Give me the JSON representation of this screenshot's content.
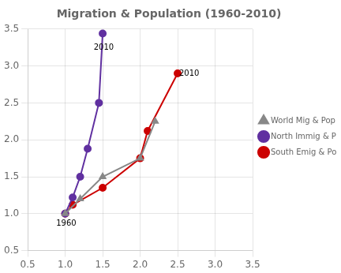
{
  "chart_data": {
    "type": "line",
    "title": "Migration & Population (1960-2010)",
    "xlim": [
      0.5,
      3.5
    ],
    "ylim": [
      0.5,
      3.5
    ],
    "xticks": [
      0.5,
      {
        "value": 1.0,
        "label": "1.0"
      },
      1.5,
      {
        "value": 2.0,
        "label": "2.0"
      },
      2.5,
      {
        "value": 3.0,
        "label": "3.0"
      },
      3.5
    ],
    "yticks": [
      0.5,
      {
        "value": 1.0,
        "label": "1.0"
      },
      1.5,
      {
        "value": 2.0,
        "label": "2.0"
      },
      2.5,
      {
        "value": 3.0,
        "label": "3.0"
      },
      3.5
    ],
    "grid": true,
    "legend": "right",
    "series": [
      {
        "name": "World Mig & Pop",
        "color": "#888888",
        "marker": "triangle",
        "x": [
          1.0,
          1.2,
          1.5,
          2.0,
          2.2
        ],
        "values": [
          1.0,
          1.2,
          1.5,
          1.75,
          2.25
        ]
      },
      {
        "name": "North Immig & Pop",
        "color": "#6030A0",
        "marker": "circle",
        "x": [
          1.0,
          1.1,
          1.2,
          1.3,
          1.45,
          1.5
        ],
        "values": [
          1.0,
          1.22,
          1.5,
          1.88,
          2.5,
          3.44
        ]
      },
      {
        "name": "South Emig & Pop",
        "color": "#CC0000",
        "marker": "circle",
        "x": [
          1.0,
          1.1,
          1.5,
          2.0,
          2.1,
          2.5
        ],
        "values": [
          1.0,
          1.12,
          1.35,
          1.75,
          2.12,
          2.9
        ]
      }
    ],
    "annotations": [
      {
        "text": "2010",
        "x": 1.38,
        "y": 3.25
      },
      {
        "text": "1960",
        "x": 0.88,
        "y": 0.87
      },
      {
        "text": "2010",
        "x": 2.52,
        "y": 2.9
      }
    ]
  }
}
